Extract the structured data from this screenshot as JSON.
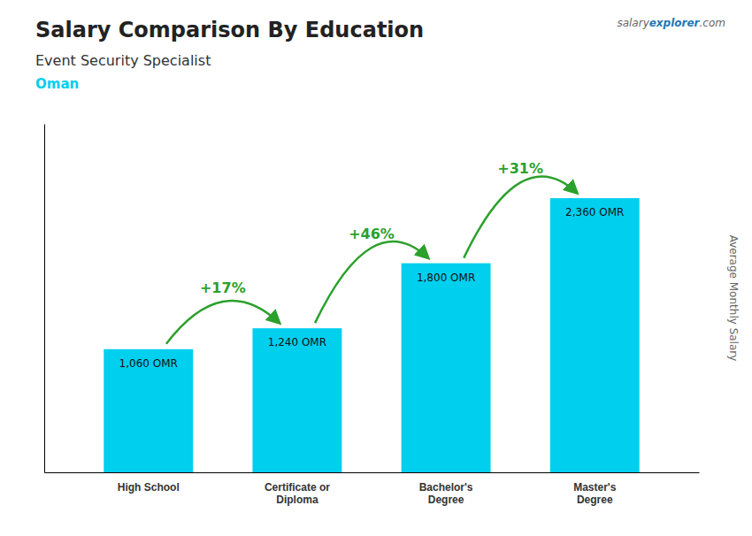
{
  "chart_data": {
    "type": "bar",
    "title": "Salary Comparison By Education",
    "subtitle": "Event Security Specialist",
    "country": "Oman",
    "source": [
      "salary",
      "explorer",
      ".com"
    ],
    "ylabel": "Average Monthly Salary",
    "categories": [
      "High School",
      "Certificate or\nDiploma",
      "Bachelor's\nDegree",
      "Master's\nDegree"
    ],
    "values": [
      1060,
      1240,
      1800,
      2360
    ],
    "value_labels": [
      "1,060 OMR",
      "1,240 OMR",
      "1,800 OMR",
      "2,360 OMR"
    ],
    "data_labels": true,
    "annotations": [
      "+17%",
      "+46%",
      "+31%"
    ],
    "color": "#00cfee",
    "ylim": [
      0,
      3000
    ],
    "tick_labels": "x",
    "grid": false
  }
}
